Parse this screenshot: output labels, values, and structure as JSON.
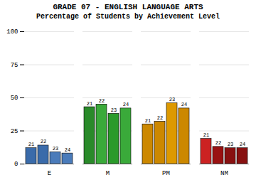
{
  "chart_data": {
    "type": "bar",
    "title": "GRADE 07 - ENGLISH LANGUAGE ARTS",
    "subtitle": "Percentage of Students by Achievement Level",
    "categories": [
      "E",
      "M",
      "PM",
      "NM"
    ],
    "series": [
      {
        "name": "21",
        "values": [
          12,
          43,
          30,
          19
        ],
        "colors": [
          "#3a6baa",
          "#2a8a2a",
          "#cc8800",
          "#cc2222"
        ]
      },
      {
        "name": "22",
        "values": [
          14,
          45,
          32,
          13
        ],
        "colors": [
          "#3a6baa",
          "#3aaa3a",
          "#cc8800",
          "#991111"
        ]
      },
      {
        "name": "23",
        "values": [
          9,
          38,
          46,
          12
        ],
        "colors": [
          "#4a7bba",
          "#2a9a2a",
          "#dd9900",
          "#881111"
        ]
      },
      {
        "name": "24",
        "values": [
          8,
          42,
          42,
          12
        ],
        "colors": [
          "#4a7bba",
          "#3aaa3a",
          "#cc8800",
          "#881111"
        ]
      }
    ],
    "ylim": [
      0,
      100
    ],
    "yticks": [
      0,
      25,
      50,
      75,
      100
    ],
    "grid": true
  }
}
